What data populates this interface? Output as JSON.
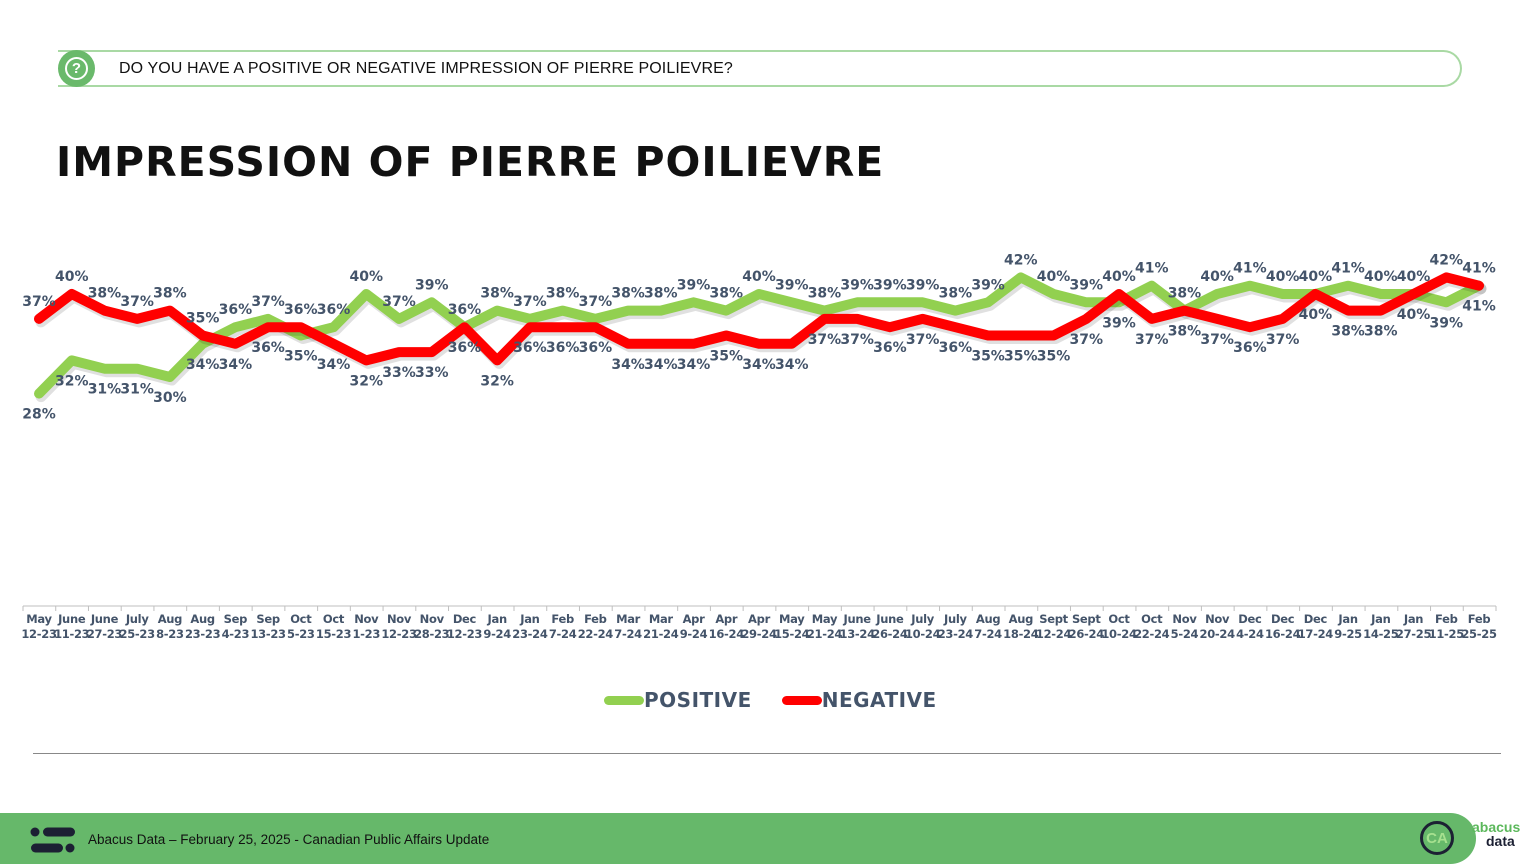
{
  "header": {
    "question": "DO YOU HAVE A POSITIVE OR NEGATIVE IMPRESSION OF PIERRE POILIEVRE?",
    "question_icon": "question-bubble-icon"
  },
  "title": "IMPRESSION OF PIERRE POILIEVRE",
  "legend": {
    "positive": "POSITIVE",
    "negative": "NEGATIVE"
  },
  "colors": {
    "positive": "#92d050",
    "negative": "#ff0000",
    "label": "#44546a",
    "accent_green": "#66b86a"
  },
  "footer": {
    "text": "Abacus Data – February 25, 2025 - Canadian Public Affairs Update",
    "badge": "CA",
    "brand_line1": "abacus",
    "brand_line2": "data"
  },
  "chart_data": {
    "type": "line",
    "title": "IMPRESSION OF PIERRE POILIEVRE",
    "xlabel": "",
    "ylabel": "",
    "ylim": [
      0,
      45
    ],
    "grid": false,
    "legend_position": "bottom",
    "categories": [
      [
        "May",
        "12-23"
      ],
      [
        "June",
        "11-23"
      ],
      [
        "June",
        "27-23"
      ],
      [
        "July",
        "25-23"
      ],
      [
        "Aug",
        "8-23"
      ],
      [
        "Aug",
        "23-23"
      ],
      [
        "Sep",
        "4-23"
      ],
      [
        "Sep",
        "13-23"
      ],
      [
        "Oct",
        "5-23"
      ],
      [
        "Oct",
        "15-23"
      ],
      [
        "Nov",
        "1-23"
      ],
      [
        "Nov",
        "12-23"
      ],
      [
        "Nov",
        "28-23"
      ],
      [
        "Dec",
        "12-23"
      ],
      [
        "Jan",
        "9-24"
      ],
      [
        "Jan",
        "23-24"
      ],
      [
        "Feb",
        "7-24"
      ],
      [
        "Feb",
        "22-24"
      ],
      [
        "Mar",
        "7-24"
      ],
      [
        "Mar",
        "21-24"
      ],
      [
        "Apr",
        "9-24"
      ],
      [
        "Apr",
        "16-24"
      ],
      [
        "Apr",
        "29-24"
      ],
      [
        "May",
        "15-24"
      ],
      [
        "May",
        "21-24"
      ],
      [
        "June",
        "13-24"
      ],
      [
        "June",
        "26-24"
      ],
      [
        "July",
        "10-24"
      ],
      [
        "July",
        "23-24"
      ],
      [
        "Aug",
        "7-24"
      ],
      [
        "Aug",
        "18-24"
      ],
      [
        "Sept",
        "12-24"
      ],
      [
        "Sept",
        "26-24"
      ],
      [
        "Oct",
        "10-24"
      ],
      [
        "Oct",
        "22-24"
      ],
      [
        "Nov",
        "5-24"
      ],
      [
        "Nov",
        "20-24"
      ],
      [
        "Dec",
        "4-24"
      ],
      [
        "Dec",
        "16-24"
      ],
      [
        "Dec",
        "17-24"
      ],
      [
        "Jan",
        "9-25"
      ],
      [
        "Jan",
        "14-25"
      ],
      [
        "Jan",
        "27-25"
      ],
      [
        "Feb",
        "11-25"
      ],
      [
        "Feb",
        "25-25"
      ]
    ],
    "series": [
      {
        "name": "POSITIVE",
        "color": "#92d050",
        "values": [
          28,
          32,
          31,
          31,
          30,
          34,
          36,
          37,
          35,
          36,
          40,
          37,
          39,
          36,
          38,
          37,
          38,
          37,
          38,
          38,
          39,
          38,
          40,
          39,
          38,
          39,
          39,
          39,
          38,
          39,
          42,
          40,
          39,
          39,
          41,
          38,
          40,
          41,
          40,
          40,
          41,
          40,
          40,
          39,
          41
        ]
      },
      {
        "name": "NEGATIVE",
        "color": "#ff0000",
        "values": [
          37,
          40,
          38,
          37,
          38,
          35,
          34,
          36,
          36,
          34,
          32,
          33,
          33,
          36,
          32,
          36,
          36,
          36,
          34,
          34,
          34,
          35,
          34,
          34,
          37,
          37,
          36,
          37,
          36,
          35,
          35,
          35,
          37,
          40,
          37,
          38,
          37,
          36,
          37,
          40,
          38,
          38,
          40,
          42,
          41
        ]
      }
    ],
    "value_suffix": "%"
  }
}
